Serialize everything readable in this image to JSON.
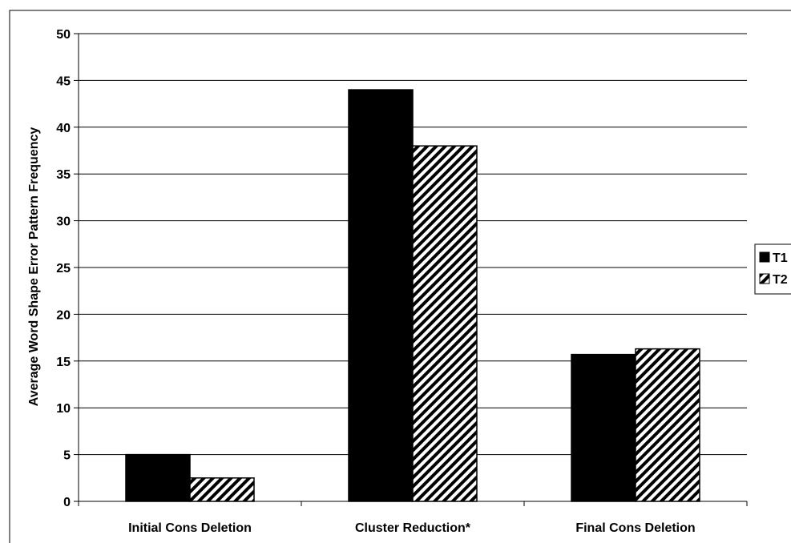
{
  "chart_data": {
    "type": "bar",
    "title": "",
    "xlabel": "",
    "ylabel": "Average Word Shape Error Pattern Frequency",
    "ylim": [
      0,
      50
    ],
    "yticks": [
      0,
      5,
      10,
      15,
      20,
      25,
      30,
      35,
      40,
      45,
      50
    ],
    "grid": true,
    "legend_position": "right",
    "categories": [
      "Initial Cons Deletion",
      "Cluster Reduction*",
      "Final Cons Deletion"
    ],
    "series": [
      {
        "name": "T1",
        "pattern": "solid",
        "color": "#000000",
        "values": [
          5.0,
          44.0,
          15.7
        ]
      },
      {
        "name": "T2",
        "pattern": "hatched",
        "color": "#000000",
        "values": [
          2.5,
          38.0,
          16.3
        ]
      }
    ]
  }
}
